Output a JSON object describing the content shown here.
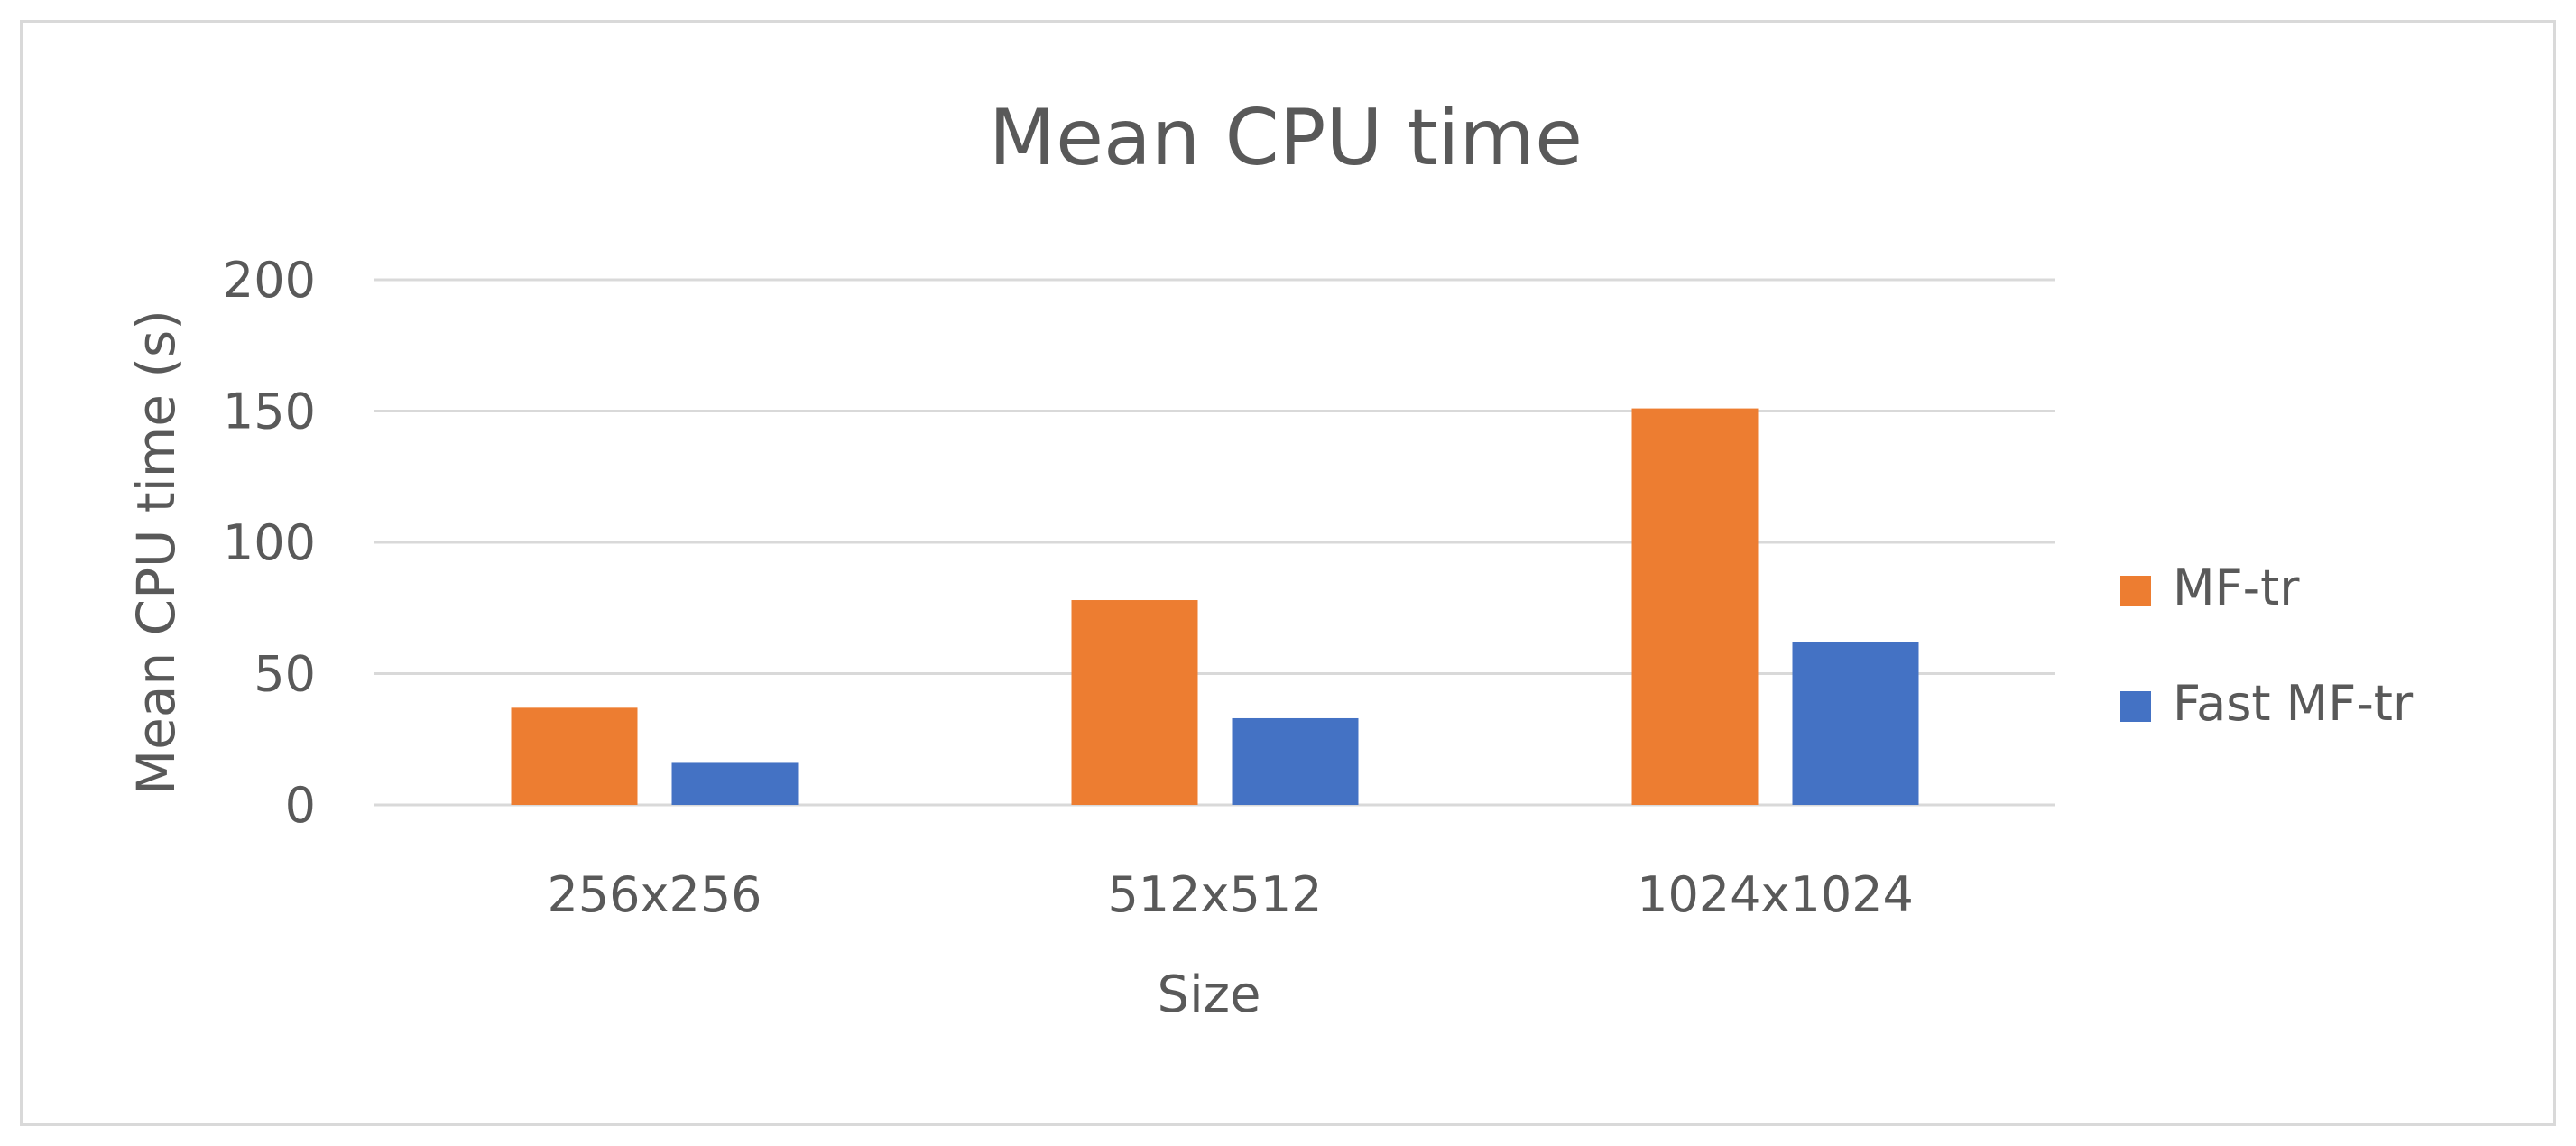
{
  "chart_data": {
    "type": "bar",
    "title": "Mean CPU time",
    "xlabel": "Size",
    "ylabel": "Mean CPU time (s)",
    "categories": [
      "256x256",
      "512x512",
      "1024x1024"
    ],
    "series": [
      {
        "name": "MF-tr",
        "values": [
          37,
          78,
          151
        ],
        "color": "#ED7D31"
      },
      {
        "name": "Fast MF-tr",
        "values": [
          16,
          33,
          62
        ],
        "color": "#4472C4"
      }
    ],
    "ylim": [
      0,
      200
    ],
    "yticks": [
      0,
      50,
      100,
      150,
      200
    ],
    "grid": true,
    "legend_position": "right"
  }
}
